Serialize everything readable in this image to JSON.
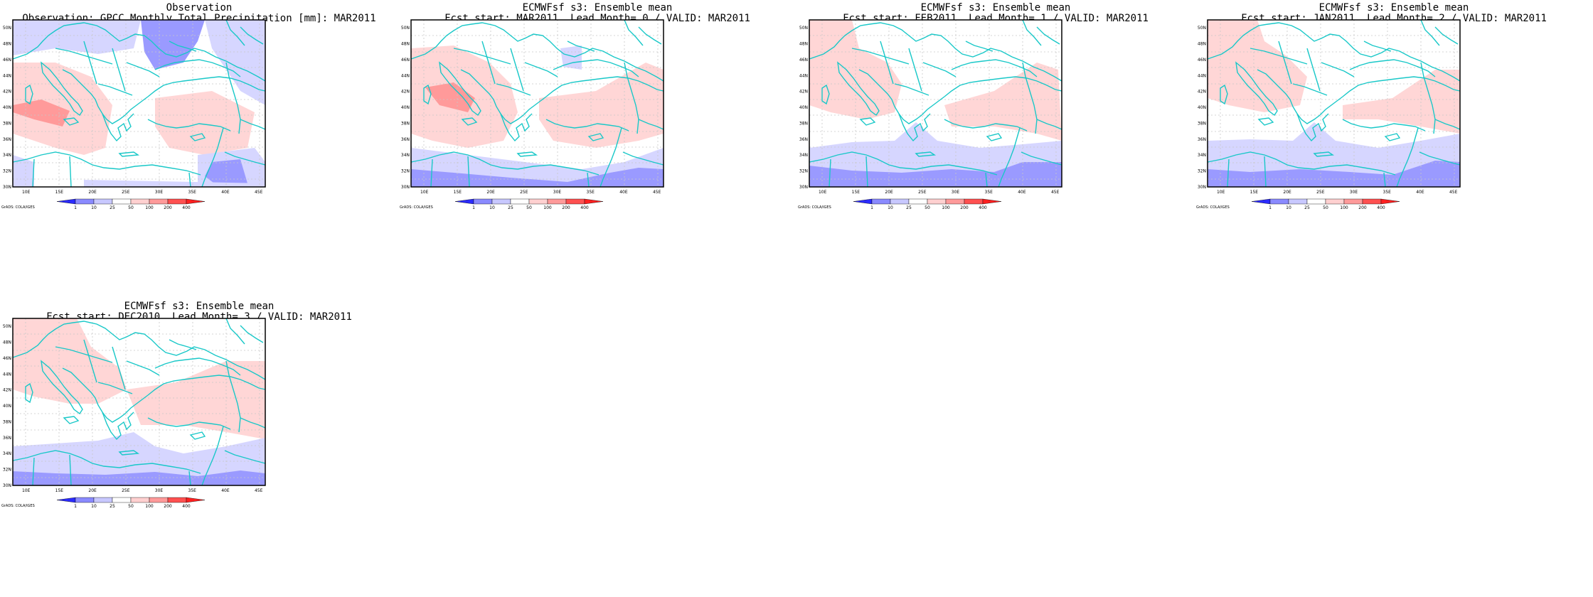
{
  "panels": [
    {
      "title_line1": "Observation",
      "title_line2": "Observation: GPCC Monthly Total Precipitation [mm]: MAR2011"
    },
    {
      "title_line1": "ECMWFsf s3: Ensemble mean",
      "title_line2": "Fcst start: MAR2011  Lead Month= 0 / VALID: MAR2011"
    },
    {
      "title_line1": "ECMWFsf s3: Ensemble mean",
      "title_line2": "Fcst start: FEB2011  Lead Month= 1 / VALID: MAR2011"
    },
    {
      "title_line1": "ECMWFsf s3: Ensemble mean",
      "title_line2": "Fcst start: JAN2011  Lead Month= 2 / VALID: MAR2011"
    },
    {
      "title_line1": "ECMWFsf s3: Ensemble mean",
      "title_line2": "Fcst start: DEC2010  Lead Month= 3 / VALID: MAR2011"
    }
  ],
  "map_axes": {
    "lon_ticks": [
      "10E",
      "15E",
      "20E",
      "25E",
      "30E",
      "35E",
      "40E",
      "45E"
    ],
    "lat_ticks": [
      "30N",
      "32N",
      "34N",
      "36N",
      "38N",
      "40N",
      "42N",
      "44N",
      "46N",
      "48N",
      "50N"
    ],
    "lon_range": [
      8,
      46
    ],
    "lat_range": [
      30,
      51
    ]
  },
  "colorbar": {
    "labels": [
      "1",
      "10",
      "25",
      "50",
      "100",
      "200",
      "400"
    ],
    "colors": [
      "#2b2bff",
      "#8a8aff",
      "#c8c8ff",
      "#ffffff",
      "#ffd0d0",
      "#ff9a9a",
      "#ff5050",
      "#ff2020"
    ]
  },
  "credit": "GrADS: COLA/IGES",
  "colors": {
    "coast": "#19c8c8",
    "frame": "#000000",
    "grid": "#c0c0c0"
  }
}
